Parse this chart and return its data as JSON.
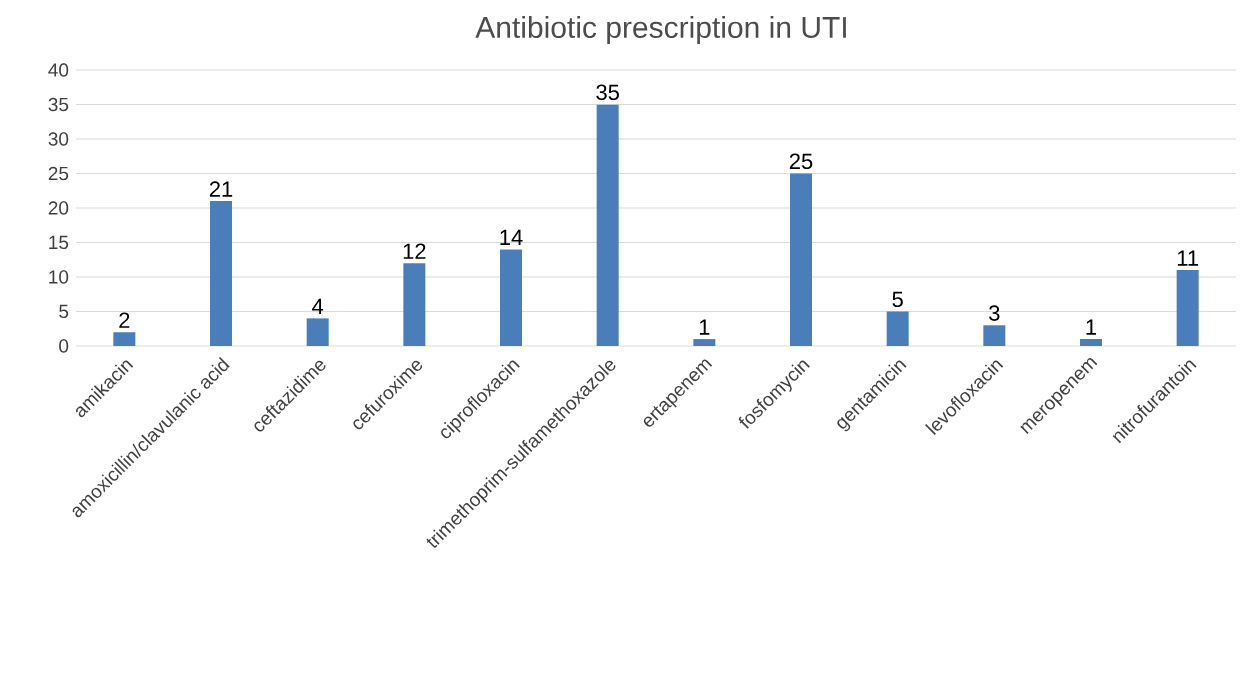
{
  "chart_data": {
    "type": "bar",
    "title": "Antibiotic prescription in UTI",
    "categories": [
      "amikacin",
      "amoxicillin/clavulanic acid",
      "ceftazidime",
      "cefuroxime",
      "ciprofloxacin",
      "trimethoprim-sulfamethoxazole",
      "ertapenem",
      "fosfomycin",
      "gentamicin",
      "levofloxacin",
      "meropenem",
      "nitrofurantoin"
    ],
    "values": [
      2,
      21,
      4,
      12,
      14,
      35,
      1,
      25,
      5,
      3,
      1,
      11
    ],
    "color": "#4a7ebb",
    "ylim": [
      0,
      40
    ],
    "yticks": [
      0,
      5,
      10,
      15,
      20,
      25,
      30,
      35,
      40
    ],
    "grid": "y",
    "data_labels": true
  }
}
